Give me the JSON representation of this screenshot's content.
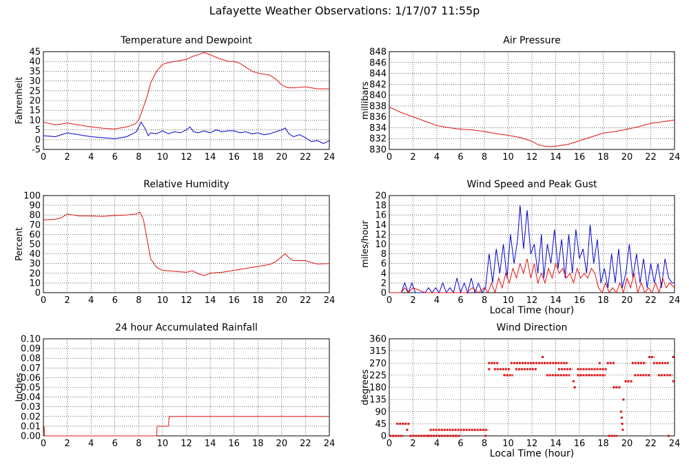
{
  "page": {
    "title": "Lafayette Weather Observations: 1/17/07 11:55p"
  },
  "colors": {
    "red": "#e01010",
    "blue": "#0000cc",
    "grid": "#000000",
    "background": "#ffffff"
  },
  "chart_data": [
    {
      "id": "temp",
      "type": "line",
      "title": "Temperature and Dewpoint",
      "xlabel": "",
      "ylabel": "Fahrenheit",
      "xlim": [
        0,
        24
      ],
      "ylim": [
        -5,
        45
      ],
      "xticks": [
        0,
        2,
        4,
        6,
        8,
        10,
        12,
        14,
        16,
        18,
        20,
        22,
        24
      ],
      "yticks": [
        -5,
        0,
        5,
        10,
        15,
        20,
        25,
        30,
        35,
        40,
        45
      ],
      "grid": true,
      "series": [
        {
          "color": "#e01010",
          "x": [
            0,
            1,
            2,
            3,
            4,
            5,
            6,
            7,
            7.7,
            8,
            8.3,
            8.7,
            9,
            9.5,
            10,
            10.5,
            11,
            12,
            12.5,
            13,
            13.5,
            14,
            14.5,
            15,
            15.5,
            16,
            16.5,
            17,
            17.5,
            18,
            19,
            19.5,
            20,
            20.5,
            21,
            22,
            23,
            24
          ],
          "y": [
            9,
            7.5,
            8.5,
            7.5,
            6.5,
            5.8,
            5.5,
            6.5,
            8,
            10,
            15,
            22,
            29,
            35,
            38.5,
            39.5,
            40,
            41,
            42.5,
            43.5,
            44.5,
            43.5,
            42,
            41,
            40,
            40,
            39,
            37,
            35,
            34,
            33,
            31,
            28,
            26.5,
            26.5,
            27,
            26,
            26
          ]
        },
        {
          "color": "#0000cc",
          "x": [
            0,
            1,
            2,
            3,
            4,
            5,
            6,
            7,
            7.8,
            8.2,
            8.5,
            8.8,
            9,
            9.5,
            10,
            10.5,
            11,
            11.5,
            12,
            12.3,
            12.6,
            13,
            13.5,
            14,
            14.5,
            15,
            15.5,
            16,
            16.5,
            17,
            17.5,
            18,
            18.5,
            19,
            19.5,
            20,
            20.3,
            20.6,
            21,
            21.5,
            22,
            22.5,
            23,
            23.5,
            24
          ],
          "y": [
            2,
            1.5,
            3.5,
            2.5,
            1.5,
            1,
            0.5,
            1.5,
            4,
            9,
            6,
            2,
            3.5,
            3,
            4.5,
            3,
            4,
            3.5,
            5,
            6.5,
            4,
            3.5,
            4.5,
            3.5,
            5,
            4,
            4.5,
            4.5,
            3.5,
            4,
            3,
            3.5,
            2.5,
            3,
            4,
            5,
            6,
            3,
            1.5,
            2.5,
            1,
            -1,
            -0.5,
            -2,
            -0.5
          ]
        }
      ]
    },
    {
      "id": "pressure",
      "type": "line",
      "title": "Air Pressure",
      "xlabel": "",
      "ylabel": "millibars",
      "xlim": [
        0,
        24
      ],
      "ylim": [
        830,
        848
      ],
      "xticks": [
        0,
        2,
        4,
        6,
        8,
        10,
        12,
        14,
        16,
        18,
        20,
        22,
        24
      ],
      "yticks": [
        830,
        832,
        834,
        836,
        838,
        840,
        842,
        844,
        846,
        848
      ],
      "grid": true,
      "series": [
        {
          "color": "#e01010",
          "x": [
            0,
            1,
            2,
            3,
            4,
            5,
            6,
            7,
            8,
            9,
            10,
            11,
            12,
            12.5,
            13,
            13.5,
            14,
            15,
            16,
            17,
            18,
            19,
            20,
            21,
            22,
            23,
            24
          ],
          "y": [
            837.8,
            836.8,
            836,
            835.2,
            834.4,
            834,
            833.7,
            833.6,
            833.3,
            832.9,
            832.6,
            832.2,
            831.5,
            830.9,
            830.6,
            830.5,
            830.6,
            830.9,
            831.6,
            832.3,
            833,
            833.3,
            833.7,
            834.2,
            834.8,
            835.1,
            835.4
          ]
        }
      ]
    },
    {
      "id": "humidity",
      "type": "line",
      "title": "Relative Humidity",
      "xlabel": "",
      "ylabel": "Percent",
      "xlim": [
        0,
        24
      ],
      "ylim": [
        0,
        100
      ],
      "xticks": [
        0,
        2,
        4,
        6,
        8,
        10,
        12,
        14,
        16,
        18,
        20,
        22,
        24
      ],
      "yticks": [
        0,
        10,
        20,
        30,
        40,
        50,
        60,
        70,
        80,
        90,
        100
      ],
      "grid": true,
      "series": [
        {
          "color": "#e01010",
          "x": [
            0,
            1,
            1.5,
            2,
            3,
            4,
            5,
            6,
            7,
            7.8,
            8.1,
            8.4,
            8.7,
            9,
            9.5,
            10,
            11,
            12,
            12.5,
            13,
            13.5,
            14,
            15,
            16,
            17,
            18,
            19,
            19.5,
            20,
            20.3,
            20.6,
            21,
            22,
            22.5,
            23,
            24
          ],
          "y": [
            75,
            75.5,
            77,
            81,
            79,
            79,
            78.5,
            79.5,
            80,
            81,
            83,
            75,
            55,
            35,
            26,
            23,
            22,
            21,
            22.5,
            19.5,
            17.5,
            20,
            21,
            23,
            25,
            27,
            29,
            32,
            37,
            40,
            36,
            33,
            33,
            31,
            29.5,
            30
          ]
        }
      ]
    },
    {
      "id": "wind",
      "type": "line",
      "title": "Wind Speed and Peak Gust",
      "xlabel": "Local Time (hour)",
      "ylabel": "miles/hour",
      "xlim": [
        0,
        24
      ],
      "ylim": [
        0,
        20
      ],
      "xticks": [
        0,
        2,
        4,
        6,
        8,
        10,
        12,
        14,
        16,
        18,
        20,
        22,
        24
      ],
      "yticks": [
        0,
        2,
        4,
        6,
        8,
        10,
        12,
        14,
        16,
        18,
        20
      ],
      "grid": true,
      "series": [
        {
          "color": "#0000cc",
          "x": [
            0,
            0.6,
            1,
            1.3,
            1.6,
            1.9,
            2.2,
            2.5,
            3,
            3.3,
            3.6,
            3.9,
            4.2,
            4.5,
            4.8,
            5.1,
            5.4,
            5.7,
            6,
            6.3,
            6.6,
            6.9,
            7.2,
            7.5,
            7.8,
            8.1,
            8.4,
            8.7,
            9,
            9.3,
            9.6,
            9.9,
            10.2,
            10.5,
            10.8,
            11,
            11.3,
            11.6,
            11.9,
            12.2,
            12.5,
            12.8,
            13,
            13.3,
            13.6,
            13.9,
            14.2,
            14.5,
            14.8,
            15.1,
            15.4,
            15.7,
            16,
            16.3,
            16.6,
            16.9,
            17.2,
            17.5,
            17.8,
            18.1,
            18.4,
            18.7,
            19,
            19.3,
            19.6,
            19.9,
            20.2,
            20.5,
            20.8,
            21.1,
            21.4,
            21.7,
            22,
            22.3,
            22.6,
            22.9,
            23.2,
            23.5,
            23.8,
            24
          ],
          "y": [
            0,
            0,
            0,
            2,
            0,
            2,
            0,
            0,
            0,
            1,
            0,
            1,
            0,
            2,
            0,
            1,
            0,
            3,
            0,
            2,
            0,
            3,
            0,
            2,
            0,
            1,
            8,
            2,
            9,
            4,
            10,
            3,
            12,
            6,
            11,
            18,
            9,
            17,
            8,
            10,
            4,
            12,
            3,
            10,
            6,
            13,
            5,
            11,
            3,
            12,
            4,
            13,
            7,
            9,
            4,
            14,
            6,
            11,
            2,
            5,
            1,
            8,
            2,
            9,
            1,
            4,
            10,
            3,
            8,
            2,
            7,
            1,
            6,
            2,
            6,
            1,
            7,
            3,
            2,
            2
          ]
        },
        {
          "color": "#e01010",
          "x": [
            0,
            1,
            1.3,
            1.6,
            2,
            3,
            4,
            5,
            6,
            6.5,
            7,
            7.5,
            8,
            8.3,
            8.6,
            8.9,
            9.2,
            9.5,
            9.8,
            10.1,
            10.4,
            10.7,
            11,
            11.3,
            11.6,
            11.9,
            12.2,
            12.5,
            12.8,
            13.1,
            13.4,
            13.7,
            14,
            14.3,
            14.6,
            14.9,
            15.2,
            15.5,
            15.8,
            16.1,
            16.4,
            16.7,
            17,
            17.3,
            17.6,
            17.9,
            18.2,
            18.5,
            18.8,
            19.1,
            19.4,
            19.7,
            20,
            20.3,
            20.6,
            20.9,
            21.2,
            21.5,
            21.8,
            22.1,
            22.4,
            22.7,
            23,
            23.3,
            23.6,
            24
          ],
          "y": [
            0,
            0,
            1,
            0,
            1,
            0,
            0,
            0,
            0,
            0,
            1,
            0,
            1,
            0,
            2,
            0,
            3,
            1,
            4,
            2,
            5,
            3,
            6,
            4,
            7,
            3,
            6,
            2,
            4,
            2,
            5,
            3,
            6,
            4,
            5,
            3,
            4,
            2,
            5,
            3,
            4,
            3,
            5,
            4,
            1,
            0,
            2,
            0,
            1,
            0,
            2,
            0,
            3,
            1,
            4,
            0,
            2,
            0,
            1,
            0,
            2,
            0,
            3,
            1,
            2,
            1
          ]
        }
      ]
    },
    {
      "id": "rain",
      "type": "line",
      "title": "24 hour Accumulated Rainfall",
      "xlabel": "",
      "ylabel": "Inches",
      "xlim": [
        0,
        24
      ],
      "ylim": [
        0,
        0.1
      ],
      "xticks": [
        0,
        2,
        4,
        6,
        8,
        10,
        12,
        14,
        16,
        18,
        20,
        22,
        24
      ],
      "yticks": [
        "0.00",
        "0.01",
        "0.02",
        "0.03",
        "0.04",
        "0.05",
        "0.06",
        "0.07",
        "0.08",
        "0.09",
        "0.10"
      ],
      "grid": true,
      "series": [
        {
          "color": "#e01010",
          "x": [
            0,
            0.05,
            0.1,
            9.5,
            9.55,
            10.5,
            10.55,
            24
          ],
          "y": [
            0.01,
            0.01,
            0,
            0,
            0.01,
            0.01,
            0.02,
            0.02
          ]
        }
      ]
    },
    {
      "id": "winddir",
      "type": "scatter",
      "title": "Wind Direction",
      "xlabel": "Local Time (hour)",
      "ylabel": "degrees",
      "xlim": [
        0,
        24
      ],
      "ylim": [
        0,
        360
      ],
      "xticks": [
        0,
        2,
        4,
        6,
        8,
        10,
        12,
        14,
        16,
        18,
        20,
        22,
        24
      ],
      "yticks": [
        0,
        45,
        90,
        135,
        180,
        225,
        270,
        315,
        360
      ],
      "grid": true,
      "segments": [
        {
          "x0": 0,
          "x1": 1.2,
          "y": 0
        },
        {
          "x0": 0.6,
          "x1": 1.7,
          "y": 45
        },
        {
          "x0": 1.7,
          "x1": 3.4,
          "y": 0
        },
        {
          "x0": 3.4,
          "x1": 8.3,
          "y": 22.5
        },
        {
          "x0": 3.2,
          "x1": 6,
          "y": 0
        },
        {
          "x0": 8.3,
          "x1": 9.2,
          "y": 270
        },
        {
          "x0": 8.8,
          "x1": 10.2,
          "y": 247.5
        },
        {
          "x0": 9.6,
          "x1": 10.4,
          "y": 225
        },
        {
          "x0": 10.2,
          "x1": 13.2,
          "y": 270
        },
        {
          "x0": 10.6,
          "x1": 12.4,
          "y": 247.5
        },
        {
          "x0": 13,
          "x1": 15,
          "y": 270
        },
        {
          "x0": 13.2,
          "x1": 15.2,
          "y": 225
        },
        {
          "x0": 14.2,
          "x1": 15.4,
          "y": 247.5
        },
        {
          "x0": 15.8,
          "x1": 18.3,
          "y": 247.5
        },
        {
          "x0": 15.8,
          "x1": 18.2,
          "y": 225
        },
        {
          "x0": 18.3,
          "x1": 19,
          "y": 270
        },
        {
          "x0": 18.8,
          "x1": 19.5,
          "y": 180
        },
        {
          "x0": 18.4,
          "x1": 19.2,
          "y": 0
        },
        {
          "x0": 19.8,
          "x1": 20.5,
          "y": 202.5
        },
        {
          "x0": 20.4,
          "x1": 21.6,
          "y": 270
        },
        {
          "x0": 20.6,
          "x1": 22,
          "y": 225
        },
        {
          "x0": 21.8,
          "x1": 22.3,
          "y": 292.5
        },
        {
          "x0": 22.2,
          "x1": 23.5,
          "y": 270
        },
        {
          "x0": 22.6,
          "x1": 23.8,
          "y": 225
        },
        {
          "x0": 23.8,
          "x1": 24,
          "y": 292.5
        }
      ],
      "points": [
        {
          "x": 1.5,
          "y": 22.5
        },
        {
          "x": 8.1,
          "y": 0
        },
        {
          "x": 8.4,
          "y": 247.5
        },
        {
          "x": 12.9,
          "y": 292.5
        },
        {
          "x": 15.5,
          "y": 202.5
        },
        {
          "x": 15.6,
          "y": 180
        },
        {
          "x": 17.7,
          "y": 270
        },
        {
          "x": 19.5,
          "y": 90
        },
        {
          "x": 19.55,
          "y": 67.5
        },
        {
          "x": 19.6,
          "y": 45
        },
        {
          "x": 19.7,
          "y": 135
        },
        {
          "x": 19.65,
          "y": 22.5
        },
        {
          "x": 23.5,
          "y": 0
        },
        {
          "x": 23.9,
          "y": 202.5
        }
      ]
    }
  ]
}
